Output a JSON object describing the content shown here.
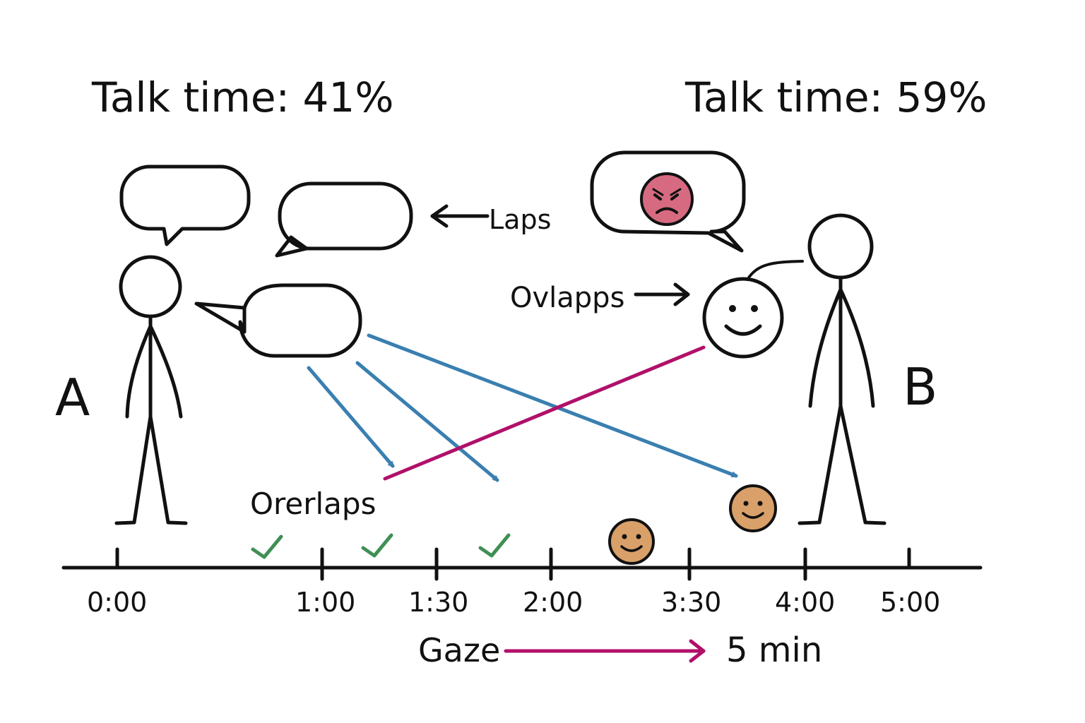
{
  "speakers": {
    "a": {
      "label": "A",
      "talk_time": "Talk time: 41%"
    },
    "b": {
      "label": "B",
      "talk_time": "Talk time: 59%"
    }
  },
  "annotations": {
    "laps": "Laps",
    "ovlapps": "Ovlapps",
    "orerlaps": "Orerlaps"
  },
  "timeline": {
    "ticks": [
      "0:00",
      "1:00",
      "1:30",
      "2:00",
      "3:30",
      "4:00",
      "5:00"
    ]
  },
  "gaze": {
    "label": "Gaze",
    "duration": "5 min"
  },
  "icons": {
    "checkmarks": [
      "check-icon",
      "check-icon",
      "check-icon"
    ],
    "faces": [
      "angry-face-icon",
      "smiley-face-icon",
      "smiley-face-icon",
      "smiley-face-icon"
    ]
  },
  "colors": {
    "ink": "#111111",
    "blue_arrow": "#3a7fb0",
    "magenta_line": "#b0106a",
    "check_green": "#3f8f55",
    "angry_face": "#d66a80",
    "face_orange": "#d9a06a"
  }
}
